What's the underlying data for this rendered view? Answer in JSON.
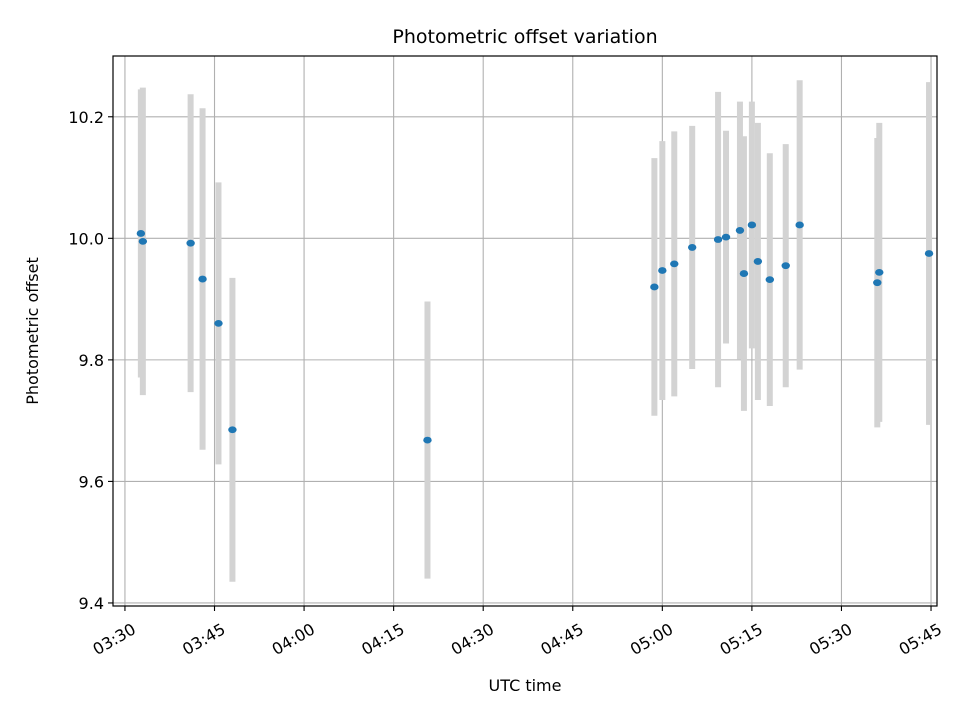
{
  "chart_data": {
    "type": "scatter",
    "title": "Photometric offset variation",
    "xlabel": "UTC time",
    "ylabel": "Photometric offset",
    "x_ticks": [
      "03:30",
      "03:45",
      "04:00",
      "04:15",
      "04:30",
      "04:45",
      "05:00",
      "05:15",
      "05:30",
      "05:45"
    ],
    "y_ticks": [
      "9.4",
      "9.6",
      "9.8",
      "10.0",
      "10.2"
    ],
    "xlim": [
      "03:28",
      "05:46"
    ],
    "ylim": [
      9.395,
      10.3
    ],
    "grid": true,
    "colors": {
      "point": "#1f77b4",
      "errorbar": "#d3d3d3",
      "grid": "#b0b0b0"
    },
    "series": [
      {
        "points": [
          {
            "x": "03:32:40",
            "y": 10.008,
            "err": 0.237
          },
          {
            "x": "03:33:00",
            "y": 9.995,
            "err": 0.253
          },
          {
            "x": "03:41:00",
            "y": 9.992,
            "err": 0.245
          },
          {
            "x": "03:43:00",
            "y": 9.933,
            "err": 0.281
          },
          {
            "x": "03:45:40",
            "y": 9.86,
            "err": 0.232
          },
          {
            "x": "03:48:00",
            "y": 9.685,
            "err": 0.25
          },
          {
            "x": "04:20:40",
            "y": 9.668,
            "err": 0.228
          },
          {
            "x": "04:58:40",
            "y": 9.92,
            "err": 0.212
          },
          {
            "x": "05:00:00",
            "y": 9.947,
            "err": 0.213
          },
          {
            "x": "05:02:00",
            "y": 9.958,
            "err": 0.218
          },
          {
            "x": "05:05:00",
            "y": 9.985,
            "err": 0.2
          },
          {
            "x": "05:09:20",
            "y": 9.998,
            "err": 0.243
          },
          {
            "x": "05:10:40",
            "y": 10.002,
            "err": 0.175
          },
          {
            "x": "05:13:00",
            "y": 10.013,
            "err": 0.212
          },
          {
            "x": "05:13:40",
            "y": 9.942,
            "err": 0.226
          },
          {
            "x": "05:15:00",
            "y": 10.022,
            "err": 0.203
          },
          {
            "x": "05:16:00",
            "y": 9.962,
            "err": 0.228
          },
          {
            "x": "05:18:00",
            "y": 9.932,
            "err": 0.208
          },
          {
            "x": "05:20:40",
            "y": 9.955,
            "err": 0.2
          },
          {
            "x": "05:23:00",
            "y": 10.022,
            "err": 0.238
          },
          {
            "x": "05:36:00",
            "y": 9.927,
            "err": 0.238
          },
          {
            "x": "05:36:20",
            "y": 9.944,
            "err": 0.246
          },
          {
            "x": "05:44:40",
            "y": 9.975,
            "err": 0.282
          }
        ]
      }
    ]
  }
}
